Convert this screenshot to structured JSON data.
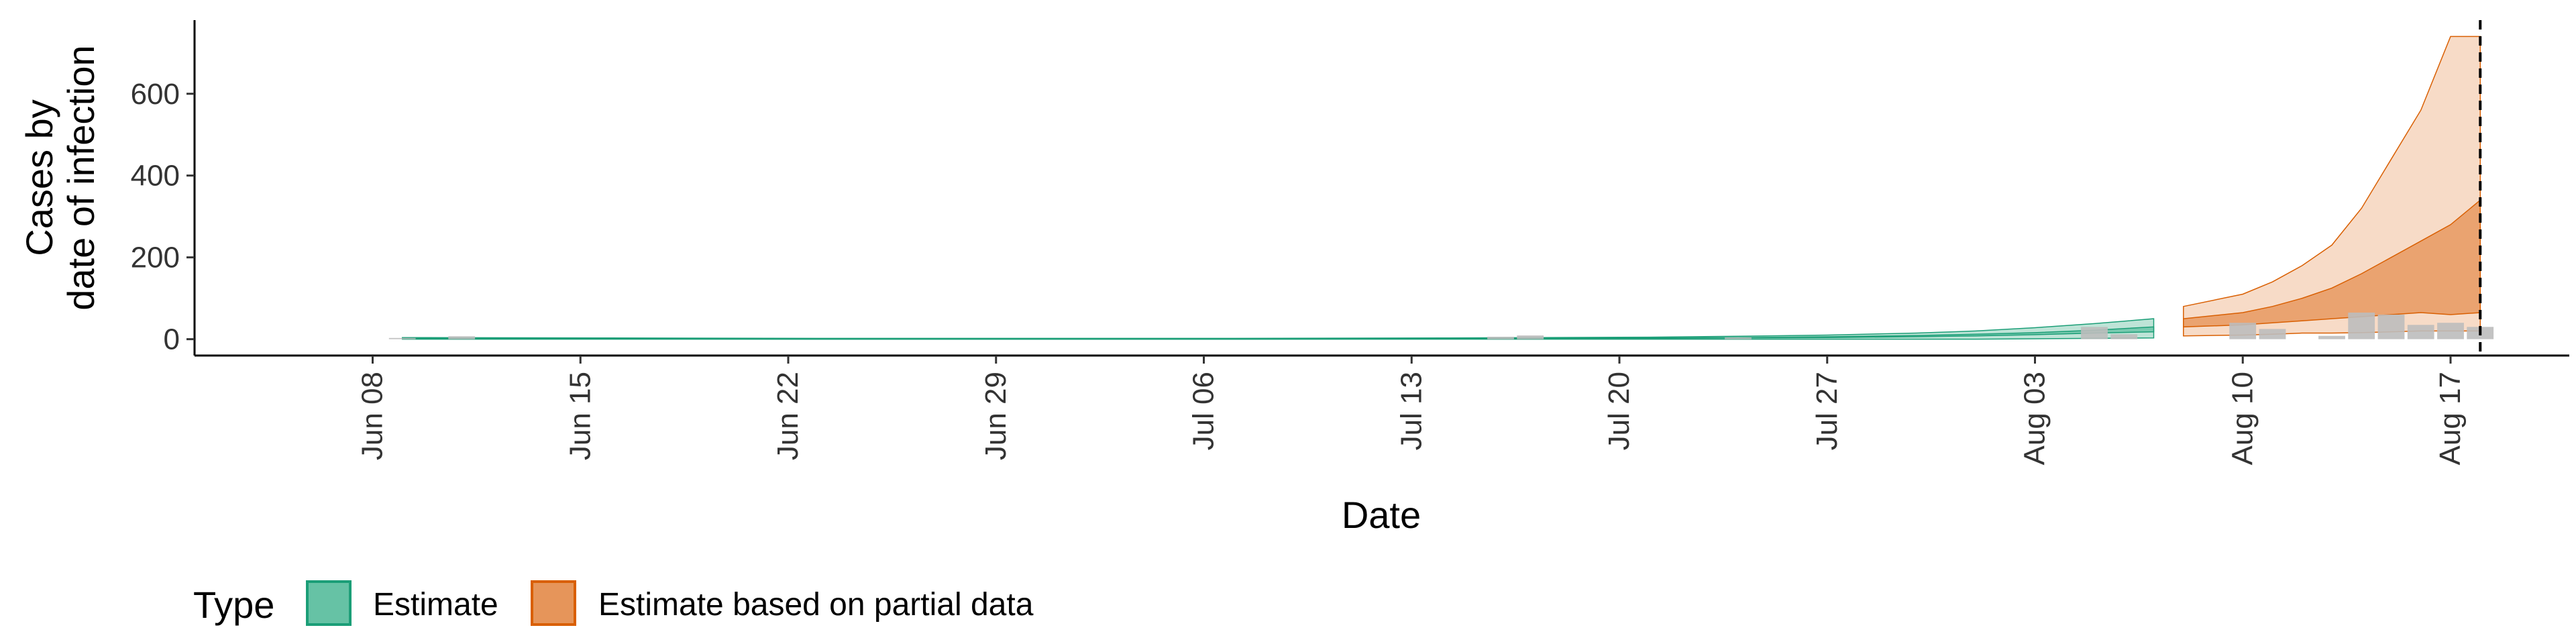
{
  "chart_data": {
    "type": "area",
    "xlabel": "Date",
    "ylabel_line1": "Cases by",
    "ylabel_line2": "date of infection",
    "xlim": [
      "2020-06-02",
      "2020-08-21"
    ],
    "ylim": [
      -40,
      780
    ],
    "y_ticks": [
      0,
      200,
      400,
      600
    ],
    "x_ticks": [
      {
        "date": "2020-06-08",
        "label": "Jun 08"
      },
      {
        "date": "2020-06-15",
        "label": "Jun 15"
      },
      {
        "date": "2020-06-22",
        "label": "Jun 22"
      },
      {
        "date": "2020-06-29",
        "label": "Jun 29"
      },
      {
        "date": "2020-07-06",
        "label": "Jul 06"
      },
      {
        "date": "2020-07-13",
        "label": "Jul 13"
      },
      {
        "date": "2020-07-20",
        "label": "Jul 20"
      },
      {
        "date": "2020-07-27",
        "label": "Jul 27"
      },
      {
        "date": "2020-08-03",
        "label": "Aug 03"
      },
      {
        "date": "2020-08-10",
        "label": "Aug 10"
      },
      {
        "date": "2020-08-17",
        "label": "Aug 17"
      }
    ],
    "grid": false,
    "vline_date": "2020-08-18",
    "legend": {
      "title": "Type",
      "placement": "bottom-left",
      "items": [
        {
          "label": "Estimate",
          "fill": "#66c2a5",
          "stroke": "#1b9e77"
        },
        {
          "label": "Estimate based on partial data",
          "fill": "#e6955a",
          "stroke": "#d95f02"
        }
      ]
    },
    "colors": {
      "estimate_outer": "#b3dfd0",
      "estimate_inner": "#66c2a5",
      "estimate_line": "#1b9e77",
      "partial_outer": "#f6d5bd",
      "partial_inner": "#e6955a",
      "partial_line": "#d95f02",
      "bars": "#bdbdbd"
    },
    "series": [
      {
        "dates": [
          "2020-06-09",
          "2020-06-16",
          "2020-06-23",
          "2020-06-30",
          "2020-07-07",
          "2020-07-14",
          "2020-07-21",
          "2020-07-24",
          "2020-07-27",
          "2020-07-30",
          "2020-08-01",
          "2020-08-03",
          "2020-08-05",
          "2020-08-07"
        ],
        "outer_lower": [
          0,
          0,
          0,
          0,
          0,
          0,
          0,
          0,
          0,
          0,
          0,
          1,
          2,
          3
        ],
        "outer_upper": [
          4,
          3,
          2,
          2,
          2,
          3,
          5,
          7,
          10,
          15,
          20,
          28,
          38,
          50
        ],
        "inner_lower": [
          1,
          1,
          0,
          0,
          0,
          1,
          2,
          3,
          4,
          6,
          8,
          11,
          15,
          18
        ],
        "inner_upper": [
          3,
          2,
          1,
          1,
          1,
          2,
          3,
          4,
          6,
          9,
          12,
          16,
          22,
          30
        ]
      },
      {
        "dates": [
          "2020-08-08",
          "2020-08-10",
          "2020-08-11",
          "2020-08-12",
          "2020-08-13",
          "2020-08-14",
          "2020-08-15",
          "2020-08-16",
          "2020-08-17",
          "2020-08-18"
        ],
        "outer_lower": [
          8,
          10,
          12,
          15,
          15,
          16,
          18,
          20,
          20,
          20
        ],
        "outer_upper": [
          80,
          110,
          140,
          180,
          230,
          320,
          440,
          560,
          740,
          740
        ],
        "inner_lower": [
          30,
          35,
          40,
          45,
          50,
          55,
          60,
          65,
          60,
          65
        ],
        "inner_upper": [
          50,
          65,
          80,
          100,
          125,
          160,
          200,
          240,
          280,
          340
        ]
      }
    ],
    "bars": [
      {
        "date": "2020-06-09",
        "value": 3
      },
      {
        "date": "2020-06-11",
        "value": 7
      },
      {
        "date": "2020-07-16",
        "value": 6
      },
      {
        "date": "2020-07-17",
        "value": 9
      },
      {
        "date": "2020-07-24",
        "value": 4
      },
      {
        "date": "2020-08-05",
        "value": 30
      },
      {
        "date": "2020-08-06",
        "value": 12
      },
      {
        "date": "2020-08-10",
        "value": 40
      },
      {
        "date": "2020-08-11",
        "value": 25
      },
      {
        "date": "2020-08-13",
        "value": 8
      },
      {
        "date": "2020-08-14",
        "value": 65
      },
      {
        "date": "2020-08-15",
        "value": 60
      },
      {
        "date": "2020-08-16",
        "value": 35
      },
      {
        "date": "2020-08-17",
        "value": 40
      },
      {
        "date": "2020-08-18",
        "value": 30
      }
    ]
  }
}
